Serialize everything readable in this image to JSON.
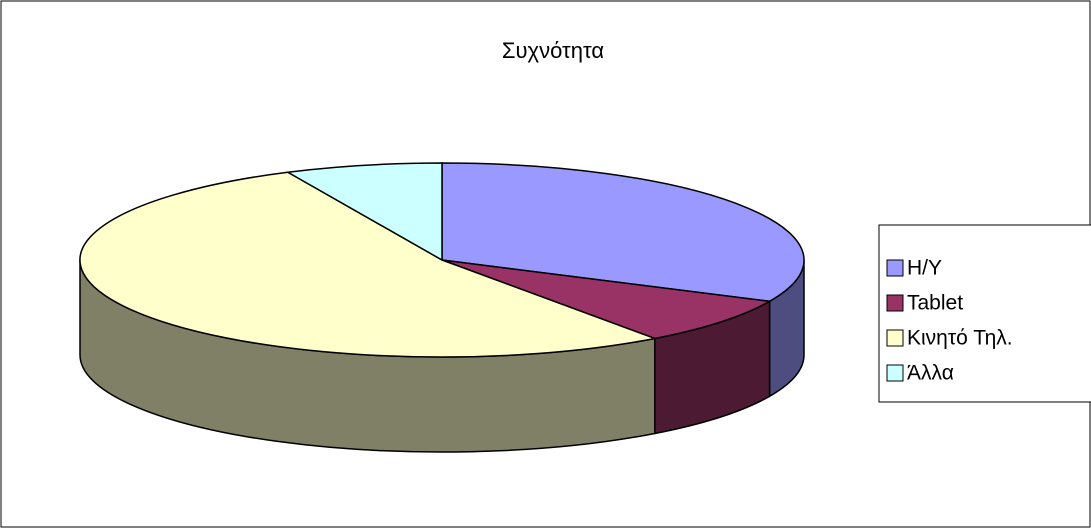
{
  "chart_data": {
    "type": "pie3d",
    "title": "Συχνότητα",
    "categories": [
      "Η/Υ",
      "Tablet",
      "Κινητό Τηλ.",
      "Άλλα"
    ],
    "values": [
      32,
      8,
      53,
      7
    ],
    "colors": [
      "#9999ff",
      "#993366",
      "#ffffcc",
      "#ccffff"
    ],
    "legend": "right"
  }
}
